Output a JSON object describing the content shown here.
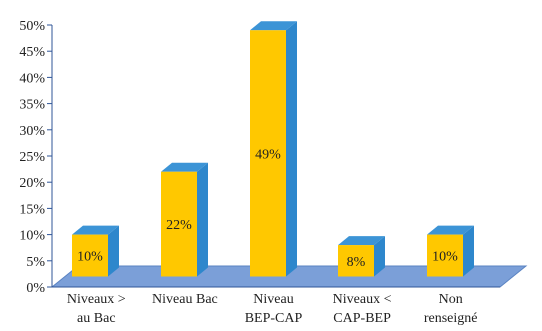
{
  "chart_data": {
    "type": "bar",
    "title": "",
    "xlabel": "",
    "ylabel": "",
    "categories": [
      [
        "Niveaux >",
        "au Bac"
      ],
      [
        "Niveau Bac"
      ],
      [
        "Niveau",
        "BEP-CAP"
      ],
      [
        "Niveaux <",
        "CAP-BEP"
      ],
      [
        "Non",
        "renseigné"
      ]
    ],
    "values": [
      10,
      22,
      49,
      8,
      10
    ],
    "value_labels": [
      "10%",
      "22%",
      "49%",
      "8%",
      "10%"
    ],
    "ylim": [
      0,
      50
    ],
    "y_ticks": [
      "0%",
      "5%",
      "10%",
      "15%",
      "20%",
      "25%",
      "30%",
      "35%",
      "40%",
      "45%",
      "50%"
    ],
    "grid": false,
    "style": "3d",
    "colors": {
      "bar_front": "#FFC800",
      "bar_side": "#2E87CC",
      "bar_top": "#3C94D6",
      "floor": "#7B9FD8",
      "floor_edge": "#5A83C2",
      "axis": "#2F5597"
    }
  }
}
